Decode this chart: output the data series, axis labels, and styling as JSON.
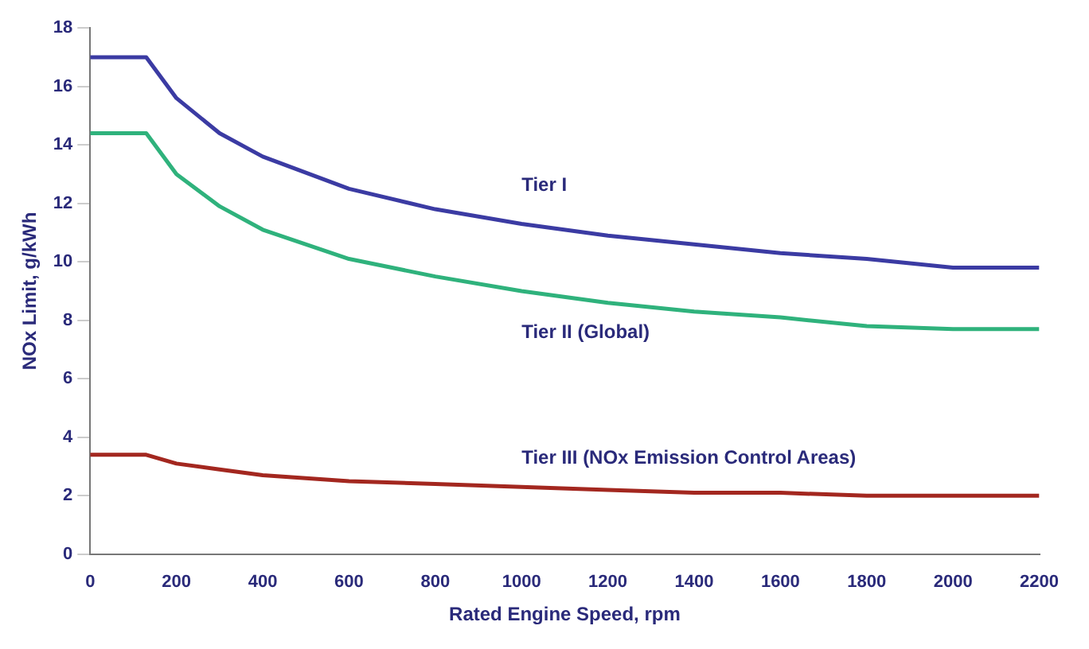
{
  "chart_data": {
    "type": "line",
    "xlabel": "Rated Engine Speed, rpm",
    "ylabel": "NOx Limit, g/kWh",
    "x": [
      0,
      130,
      200,
      300,
      400,
      600,
      800,
      1000,
      1200,
      1400,
      1600,
      1800,
      2000,
      2200
    ],
    "series": [
      {
        "name": "Tier I",
        "color": "#3b3ba3",
        "values": [
          17.0,
          17.0,
          15.6,
          14.4,
          13.6,
          12.5,
          11.8,
          11.3,
          10.9,
          10.6,
          10.3,
          10.1,
          9.8,
          9.8
        ]
      },
      {
        "name": "Tier II (Global)",
        "color": "#2fb27c",
        "values": [
          14.4,
          14.4,
          13.0,
          11.9,
          11.1,
          10.1,
          9.5,
          9.0,
          8.6,
          8.3,
          8.1,
          7.8,
          7.7,
          7.7
        ]
      },
      {
        "name": "Tier III (NOx Emission Control Areas)",
        "color": "#a3271f",
        "values": [
          3.4,
          3.4,
          3.1,
          2.9,
          2.7,
          2.5,
          2.4,
          2.3,
          2.2,
          2.1,
          2.1,
          2.0,
          2.0,
          2.0
        ]
      }
    ],
    "xlim": [
      0,
      2200
    ],
    "xticks": [
      0,
      200,
      400,
      600,
      800,
      1000,
      1200,
      1400,
      1600,
      1800,
      2000,
      2200
    ],
    "ylim": [
      0,
      18
    ],
    "yticks": [
      0,
      2,
      4,
      6,
      8,
      10,
      12,
      14,
      16,
      18
    ],
    "grid": false,
    "legend": false,
    "marker": "none",
    "line_style": "solid"
  }
}
